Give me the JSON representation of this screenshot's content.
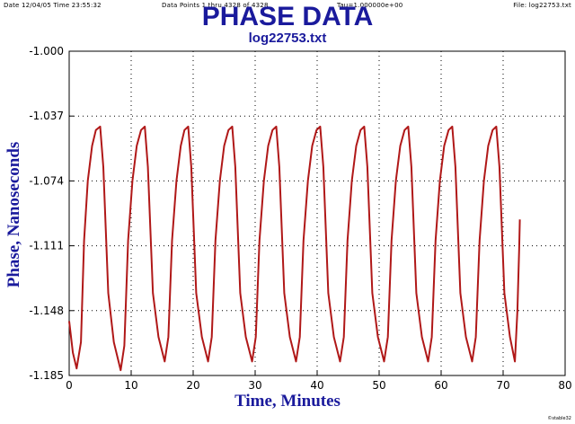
{
  "header": {
    "date_time": "Date 12/04/05 Time 23:55:32",
    "data_points": "Data Points 1 thru 4328 of 4328",
    "tau": "Tau=1.000000e+00",
    "file": "File: log22753.txt"
  },
  "footer_mark": "©stable32",
  "colors": {
    "title": "#1a1a9c",
    "line": "#b01818",
    "grid": "#000000"
  },
  "chart_data": {
    "type": "line",
    "title": "PHASE DATA",
    "subtitle": "log22753.txt",
    "xlabel": "Time, Minutes",
    "ylabel": "Phase, Nanoseconds",
    "xlim": [
      0,
      80
    ],
    "ylim": [
      -1.185,
      -1.0
    ],
    "x_ticks": [
      0,
      10,
      20,
      30,
      40,
      50,
      60,
      70,
      80
    ],
    "x_tick_labels": [
      "0",
      "10",
      "20",
      "30",
      "40",
      "50",
      "60",
      "70",
      "80"
    ],
    "y_ticks": [
      -1.0,
      -1.037,
      -1.074,
      -1.111,
      -1.148,
      -1.185
    ],
    "y_tick_labels": [
      "-1.000",
      "-1.037",
      "-1.074",
      "-1.111",
      "-1.148",
      "-1.185"
    ],
    "grid": true,
    "series": [
      {
        "values": [
          [
            0.0,
            -1.154
          ],
          [
            0.6,
            -1.172
          ],
          [
            1.2,
            -1.181
          ],
          [
            1.9,
            -1.166
          ],
          [
            2.4,
            -1.108
          ],
          [
            3.0,
            -1.074
          ],
          [
            3.7,
            -1.054
          ],
          [
            4.3,
            -1.045
          ],
          [
            5.0,
            -1.043
          ],
          [
            5.5,
            -1.066
          ],
          [
            6.3,
            -1.138
          ],
          [
            7.2,
            -1.166
          ],
          [
            8.3,
            -1.182
          ],
          [
            8.9,
            -1.168
          ],
          [
            9.5,
            -1.108
          ],
          [
            10.2,
            -1.074
          ],
          [
            10.9,
            -1.054
          ],
          [
            11.6,
            -1.045
          ],
          [
            12.2,
            -1.043
          ],
          [
            12.7,
            -1.066
          ],
          [
            13.5,
            -1.138
          ],
          [
            14.4,
            -1.163
          ],
          [
            15.4,
            -1.177
          ],
          [
            16.0,
            -1.163
          ],
          [
            16.6,
            -1.108
          ],
          [
            17.3,
            -1.074
          ],
          [
            18.0,
            -1.054
          ],
          [
            18.6,
            -1.045
          ],
          [
            19.2,
            -1.043
          ],
          [
            19.7,
            -1.066
          ],
          [
            20.5,
            -1.138
          ],
          [
            21.4,
            -1.163
          ],
          [
            22.4,
            -1.177
          ],
          [
            23.0,
            -1.163
          ],
          [
            23.6,
            -1.108
          ],
          [
            24.3,
            -1.074
          ],
          [
            25.0,
            -1.054
          ],
          [
            25.7,
            -1.045
          ],
          [
            26.3,
            -1.043
          ],
          [
            26.8,
            -1.066
          ],
          [
            27.6,
            -1.138
          ],
          [
            28.5,
            -1.163
          ],
          [
            29.5,
            -1.177
          ],
          [
            30.1,
            -1.163
          ],
          [
            30.7,
            -1.108
          ],
          [
            31.4,
            -1.074
          ],
          [
            32.1,
            -1.054
          ],
          [
            32.8,
            -1.045
          ],
          [
            33.4,
            -1.043
          ],
          [
            33.9,
            -1.066
          ],
          [
            34.7,
            -1.138
          ],
          [
            35.6,
            -1.163
          ],
          [
            36.6,
            -1.177
          ],
          [
            37.2,
            -1.163
          ],
          [
            37.8,
            -1.108
          ],
          [
            38.5,
            -1.074
          ],
          [
            39.2,
            -1.054
          ],
          [
            39.9,
            -1.045
          ],
          [
            40.5,
            -1.043
          ],
          [
            41.0,
            -1.066
          ],
          [
            41.8,
            -1.138
          ],
          [
            42.7,
            -1.163
          ],
          [
            43.7,
            -1.177
          ],
          [
            44.3,
            -1.163
          ],
          [
            44.9,
            -1.108
          ],
          [
            45.6,
            -1.074
          ],
          [
            46.3,
            -1.054
          ],
          [
            47.0,
            -1.045
          ],
          [
            47.6,
            -1.043
          ],
          [
            48.1,
            -1.066
          ],
          [
            48.9,
            -1.138
          ],
          [
            49.8,
            -1.163
          ],
          [
            50.8,
            -1.177
          ],
          [
            51.4,
            -1.163
          ],
          [
            52.0,
            -1.108
          ],
          [
            52.7,
            -1.074
          ],
          [
            53.4,
            -1.054
          ],
          [
            54.1,
            -1.045
          ],
          [
            54.7,
            -1.043
          ],
          [
            55.2,
            -1.066
          ],
          [
            56.0,
            -1.138
          ],
          [
            56.9,
            -1.163
          ],
          [
            57.9,
            -1.177
          ],
          [
            58.5,
            -1.163
          ],
          [
            59.1,
            -1.108
          ],
          [
            59.8,
            -1.074
          ],
          [
            60.5,
            -1.054
          ],
          [
            61.2,
            -1.045
          ],
          [
            61.8,
            -1.043
          ],
          [
            62.3,
            -1.066
          ],
          [
            63.1,
            -1.138
          ],
          [
            64.0,
            -1.163
          ],
          [
            65.0,
            -1.177
          ],
          [
            65.6,
            -1.163
          ],
          [
            66.2,
            -1.108
          ],
          [
            66.9,
            -1.074
          ],
          [
            67.6,
            -1.054
          ],
          [
            68.3,
            -1.045
          ],
          [
            68.9,
            -1.043
          ],
          [
            69.4,
            -1.066
          ],
          [
            70.2,
            -1.138
          ],
          [
            71.1,
            -1.163
          ],
          [
            71.9,
            -1.177
          ],
          [
            72.3,
            -1.148
          ],
          [
            72.6,
            -1.112
          ],
          [
            72.7,
            -1.096
          ]
        ]
      }
    ]
  }
}
